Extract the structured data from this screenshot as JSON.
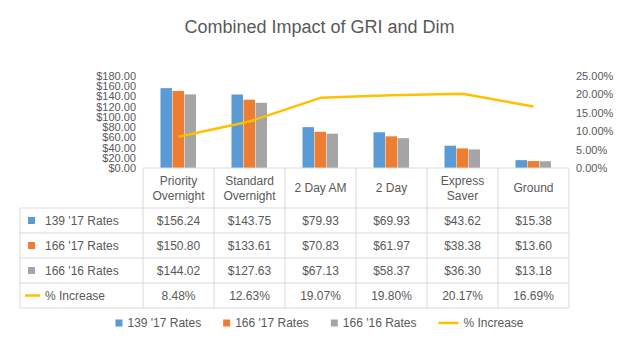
{
  "chart_data": {
    "type": "bar",
    "title": "Combined Impact of GRI and Dim",
    "categories": [
      "Priority Overnight",
      "Standard Overnight",
      "2 Day AM",
      "2 Day",
      "Express Saver",
      "Ground"
    ],
    "series": [
      {
        "name": "139 '17 Rates",
        "color": "#5b9bd5",
        "values": [
          156.24,
          143.75,
          79.93,
          69.93,
          43.62,
          15.38
        ],
        "value_labels": [
          "$156.24",
          "$143.75",
          "$79.93",
          "$69.93",
          "$43.62",
          "$15.38"
        ]
      },
      {
        "name": "166 '17 Rates",
        "color": "#ed7d31",
        "values": [
          150.8,
          133.61,
          70.83,
          61.97,
          38.38,
          13.6
        ],
        "value_labels": [
          "$150.80",
          "$133.61",
          "$70.83",
          "$61.97",
          "$38.38",
          "$13.60"
        ]
      },
      {
        "name": "166 '16 Rates",
        "color": "#a5a5a5",
        "values": [
          144.02,
          127.63,
          67.13,
          58.37,
          36.3,
          13.18
        ],
        "value_labels": [
          "$144.02",
          "$127.63",
          "$67.13",
          "$58.37",
          "$36.30",
          "$13.18"
        ]
      },
      {
        "name": "% Increase",
        "color": "#ffc000",
        "type": "line",
        "axis": "y2",
        "values": [
          8.48,
          12.63,
          19.07,
          19.8,
          20.17,
          16.69
        ],
        "value_labels": [
          "8.48%",
          "12.63%",
          "19.07%",
          "19.80%",
          "20.17%",
          "16.69%"
        ]
      }
    ],
    "ylim": [
      0,
      180
    ],
    "yticks": [
      {
        "value": 0,
        "label": "$0.00"
      },
      {
        "value": 20,
        "label": "$20.00"
      },
      {
        "value": 40,
        "label": "$40.00"
      },
      {
        "value": 60,
        "label": "$60.00"
      },
      {
        "value": 80,
        "label": "$80.00"
      },
      {
        "value": 100,
        "label": "$100.00"
      },
      {
        "value": 120,
        "label": "$120.00"
      },
      {
        "value": 140,
        "label": "$140.00"
      },
      {
        "value": 160,
        "label": "$160.00"
      },
      {
        "value": 180,
        "label": "$180.00"
      }
    ],
    "y2lim": [
      0,
      25
    ],
    "y2ticks": [
      {
        "value": 0,
        "label": "0.00%"
      },
      {
        "value": 5,
        "label": "5.00%"
      },
      {
        "value": 10,
        "label": "10.00%"
      },
      {
        "value": 15,
        "label": "15.00%"
      },
      {
        "value": 20,
        "label": "20.00%"
      },
      {
        "value": 25,
        "label": "25.00%"
      }
    ],
    "grid": false,
    "legend": "bottom",
    "data_labels": true
  }
}
